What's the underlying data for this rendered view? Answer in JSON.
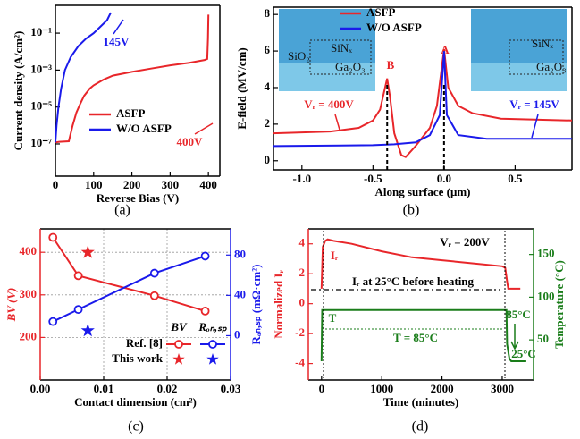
{
  "chart_data": [
    {
      "type": "line",
      "caption": "(a)",
      "xlabel": "Reverse Bias (V)",
      "ylabel": "Current density (A/cm²)",
      "xlim": [
        0,
        430
      ],
      "xticks": [
        0,
        100,
        200,
        300,
        400
      ],
      "ylog": true,
      "ylim": [
        1.8e-09,
        3.2
      ],
      "yticks": [
        {
          "value": 1e-07,
          "label": "10⁻⁷"
        },
        {
          "value": 1e-05,
          "label": "10⁻⁵"
        },
        {
          "value": 0.001,
          "label": "10⁻³"
        },
        {
          "value": 0.1,
          "label": "10⁻¹"
        }
      ],
      "series": [
        {
          "name": "ASFP",
          "color": "#e8262a",
          "x": [
            0,
            10,
            35,
            45,
            55,
            65,
            75,
            90,
            100,
            125,
            150,
            200,
            250,
            300,
            350,
            390,
            397,
            399,
            400
          ],
          "values": [
            1.2e-07,
            1.3e-07,
            1.4e-07,
            1e-06,
            5e-06,
            1.5e-05,
            4e-05,
            0.0001,
            0.00015,
            0.0003,
            0.0005,
            0.0008,
            0.0012,
            0.0018,
            0.0025,
            0.0035,
            0.004,
            0.05,
            1
          ]
        },
        {
          "name": "W/O ASFP",
          "color": "#1a1aeb",
          "x": [
            0,
            3,
            8,
            15,
            25,
            40,
            60,
            80,
            100,
            120,
            135,
            142,
            145
          ],
          "values": [
            1.2e-07,
            1e-06,
            1e-05,
            0.0001,
            0.001,
            0.005,
            0.02,
            0.05,
            0.1,
            0.25,
            0.5,
            1,
            1.3
          ]
        }
      ],
      "annotations": [
        {
          "text": "145V",
          "color": "#1a1aeb"
        },
        {
          "text": "400V",
          "color": "#e8262a"
        }
      ]
    },
    {
      "type": "line",
      "caption": "(b)",
      "xlabel": "Along surface (μm)",
      "ylabel": "E-field (MV/cm)",
      "xlim": [
        -1.2,
        0.9
      ],
      "xticks": [
        {
          "value": -1,
          "label": "-1.0"
        },
        {
          "value": -0.5,
          "label": "-0.5"
        },
        {
          "value": 0,
          "label": "0.0"
        },
        {
          "value": 0.5,
          "label": "0.5"
        }
      ],
      "ylim": [
        -0.5,
        8.4
      ],
      "yticks": [
        0,
        2,
        4,
        6,
        8
      ],
      "series": [
        {
          "name": "ASFP",
          "color": "#e8262a",
          "x": [
            -1.2,
            -0.8,
            -0.6,
            -0.5,
            -0.45,
            -0.4,
            -0.38,
            -0.35,
            -0.3,
            -0.27,
            -0.2,
            -0.1,
            -0.05,
            0,
            0.03,
            0.1,
            0.2,
            0.4,
            0.9
          ],
          "values": [
            1.5,
            1.6,
            1.8,
            2.2,
            2.8,
            4.5,
            3.5,
            1.5,
            0.3,
            0.2,
            0.8,
            1.8,
            3,
            6.1,
            4,
            3,
            2.6,
            2.3,
            2.2
          ]
        },
        {
          "name": "W/O ASFP",
          "color": "#1a1aeb",
          "x": [
            -1.2,
            -0.5,
            -0.35,
            -0.2,
            -0.1,
            -0.03,
            0,
            0.02,
            0.1,
            0.3,
            0.9
          ],
          "values": [
            0.8,
            0.85,
            0.9,
            1.0,
            1.4,
            2.5,
            6.0,
            2.5,
            1.4,
            1.2,
            1.2
          ]
        }
      ],
      "annotations": [
        {
          "text": "B",
          "color": "#e8262a"
        },
        {
          "text": "A",
          "color": "#e8262a"
        },
        {
          "text": "Vᵣ = 400V",
          "color": "#e8262a"
        },
        {
          "text": "Vᵣ = 145V",
          "color": "#1a1aeb"
        }
      ],
      "inset_labels": [
        "SiNₓ",
        "SiO₂",
        "Ga₂O₃",
        "SiNₓ",
        "Ga₂O₃"
      ]
    },
    {
      "type": "line",
      "caption": "(c)",
      "xlabel": "Contact dimension (cm²)",
      "ylabel": "BV (V)",
      "y2label": "Rₒₙ,ₛₚ (mΩ·cm²)",
      "ycolor": "#e8262a",
      "y2color": "#1a1aeb",
      "grid": true,
      "xlim": [
        0,
        0.03
      ],
      "xticks": [
        {
          "value": 0,
          "label": "0.00"
        },
        0.01,
        0.02,
        {
          "value": 0.03,
          "label": "0.03"
        }
      ],
      "ylim": [
        100,
        455
      ],
      "yticks": [
        200,
        300,
        400
      ],
      "y2lim": [
        -44,
        106
      ],
      "y2ticks": [
        0,
        40,
        80
      ],
      "series": [
        {
          "color": "#e8262a",
          "marker": "circle",
          "connect": true,
          "x": [
            0.002,
            0.006,
            0.018,
            0.026
          ],
          "values": [
            435,
            345,
            298,
            262
          ]
        },
        {
          "color": "#1a1aeb",
          "marker": "circle",
          "connect": true,
          "axis": "y2",
          "x": [
            0.002,
            0.006,
            0.018,
            0.026
          ],
          "values": [
            14,
            26,
            62,
            79
          ]
        },
        {
          "color": "#e8262a",
          "marker": "star",
          "connect": false,
          "x": [
            0.0075
          ],
          "values": [
            400
          ]
        },
        {
          "color": "#1a1aeb",
          "marker": "star",
          "connect": false,
          "axis": "y2",
          "x": [
            0.0075
          ],
          "values": [
            5
          ]
        }
      ],
      "legend": {
        "columns": [
          "BV",
          "Rₒₙ,ₛₚ"
        ],
        "rows": [
          "Ref. [8]",
          "This work"
        ]
      }
    },
    {
      "type": "line",
      "caption": "(d)",
      "xlabel": "Time (minutes)",
      "ylabel": "Normalized Iᵣ",
      "y2label": "Temperature (°C)",
      "ycolor": "#e8262a",
      "y2color": "#1a7d1a",
      "xlim": [
        -220,
        3520
      ],
      "xticks": [
        0,
        1000,
        2000,
        3000
      ],
      "ylim": [
        -5.1,
        5
      ],
      "yticks": [
        -4,
        -2,
        0,
        2,
        4
      ],
      "y2lim": [
        3,
        180
      ],
      "y2ticks": [
        50,
        100,
        150
      ],
      "series": [
        {
          "color": "#e8262a",
          "x": [
            0,
            20,
            60,
            100,
            200,
            500,
            1000,
            1500,
            2000,
            2500,
            3000,
            3050,
            3080,
            3100,
            3300
          ],
          "values": [
            1,
            3.8,
            4.2,
            4.3,
            4.2,
            4.0,
            3.5,
            3.1,
            2.9,
            2.7,
            2.5,
            2.4,
            1.5,
            1,
            1
          ]
        },
        {
          "color": "#1a7d1a",
          "axis": "y2",
          "x": [
            0,
            10,
            3070,
            3080,
            3120,
            3150,
            3400
          ],
          "values": [
            25,
            85,
            85,
            45,
            28,
            25,
            25
          ]
        }
      ],
      "annotations": [
        {
          "text": "Vᵣ = 200V",
          "color": "#000"
        },
        {
          "text": "Iᵣ",
          "color": "#e8262a"
        },
        {
          "text": "Iᵣ at 25°C before heating",
          "color": "#000"
        },
        {
          "text": "T",
          "color": "#1a7d1a"
        },
        {
          "text": "T = 85°C",
          "color": "#1a7d1a"
        },
        {
          "text": "85°C",
          "color": "#1a7d1a"
        },
        {
          "text": "25°C",
          "color": "#1a7d1a"
        }
      ]
    }
  ]
}
